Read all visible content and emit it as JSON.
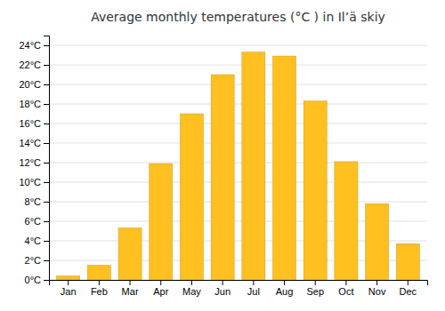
{
  "chart_data": {
    "type": "bar",
    "title": "Average monthly temperatures (°C ) in Il’ä skiy",
    "categories": [
      "Jan",
      "Feb",
      "Mar",
      "Apr",
      "May",
      "Jun",
      "Jul",
      "Aug",
      "Sep",
      "Oct",
      "Nov",
      "Dec"
    ],
    "values": [
      0.4,
      1.5,
      5.3,
      11.9,
      17.0,
      21.0,
      23.3,
      22.9,
      18.3,
      12.1,
      7.8,
      3.7
    ],
    "color": "#FFC020",
    "ylim": [
      0,
      25
    ],
    "yticks": [
      {
        "value": 0,
        "label": "0°C"
      },
      {
        "value": 2,
        "label": "2°C"
      },
      {
        "value": 4,
        "label": "4°C"
      },
      {
        "value": 6,
        "label": "6°C"
      },
      {
        "value": 8,
        "label": "8°C"
      },
      {
        "value": 10,
        "label": "10°C"
      },
      {
        "value": 12,
        "label": "12°C"
      },
      {
        "value": 14,
        "label": "14°C"
      },
      {
        "value": 16,
        "label": "16°C"
      },
      {
        "value": 18,
        "label": "18°C"
      },
      {
        "value": 20,
        "label": "20°C"
      },
      {
        "value": 22,
        "label": "22°C"
      },
      {
        "value": 24,
        "label": "24°C"
      }
    ],
    "grid": true
  }
}
